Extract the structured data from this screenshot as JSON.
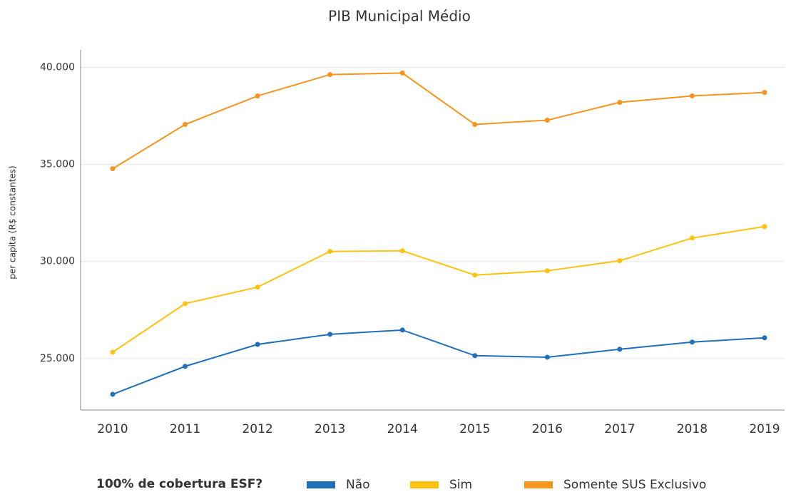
{
  "chart_data": {
    "type": "line",
    "title": "PIB Municipal Médio",
    "y_label": "per capita (R$ constantes)",
    "categories": [
      "2010",
      "2011",
      "2012",
      "2013",
      "2014",
      "2015",
      "2016",
      "2017",
      "2018",
      "2019"
    ],
    "series": [
      {
        "name": "Não",
        "color": "#1f6fba",
        "values": [
          23160,
          24600,
          25730,
          26250,
          26470,
          25150,
          25070,
          25480,
          25850,
          26070
        ]
      },
      {
        "name": "Sim",
        "color": "#ffc20e",
        "values": [
          25330,
          27830,
          28680,
          30520,
          30550,
          29300,
          29520,
          30040,
          31210,
          31800
        ]
      },
      {
        "name": "Somente SUS Exclusivo",
        "color": "#f7941d",
        "values": [
          34780,
          37060,
          38530,
          39630,
          39710,
          37060,
          37280,
          38200,
          38530,
          38710
        ]
      }
    ],
    "ylim": [
      22350,
      40900
    ],
    "yticks": [
      {
        "value": 25000,
        "label": "25.000"
      },
      {
        "value": 30000,
        "label": "30.000"
      },
      {
        "value": 35000,
        "label": "35.000"
      },
      {
        "value": 40000,
        "label": "40.000"
      }
    ],
    "grid": true,
    "legend_title": "100% de cobertura ESF?",
    "legend_position": "bottom"
  }
}
